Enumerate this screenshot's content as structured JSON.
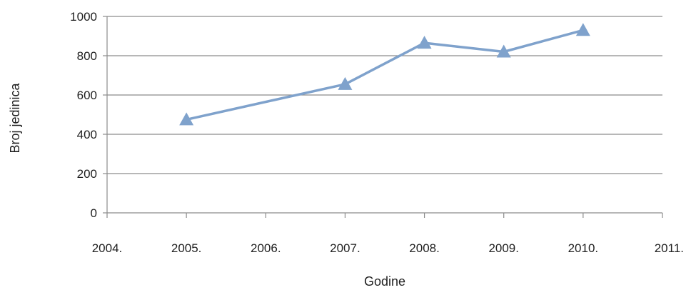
{
  "chart_data": {
    "type": "line",
    "title": "",
    "xlabel": "Godine",
    "ylabel": "Broj jedinica",
    "x_ticks": [
      "2004.",
      "2005.",
      "2006.",
      "2007.",
      "2008.",
      "2009.",
      "2010.",
      "2011."
    ],
    "y_ticks": [
      "0",
      "200",
      "400",
      "600",
      "800",
      "1000"
    ],
    "xlim": [
      2004,
      2011
    ],
    "ylim": [
      0,
      1000
    ],
    "grid": "horizontal",
    "legend": "none",
    "series": [
      {
        "marker": "triangle",
        "color": "#7fa2cc",
        "points": [
          {
            "x": 2005,
            "y": 475
          },
          {
            "x": 2007,
            "y": 655
          },
          {
            "x": 2008,
            "y": 865
          },
          {
            "x": 2009,
            "y": 820
          },
          {
            "x": 2010,
            "y": 930
          }
        ]
      }
    ]
  }
}
